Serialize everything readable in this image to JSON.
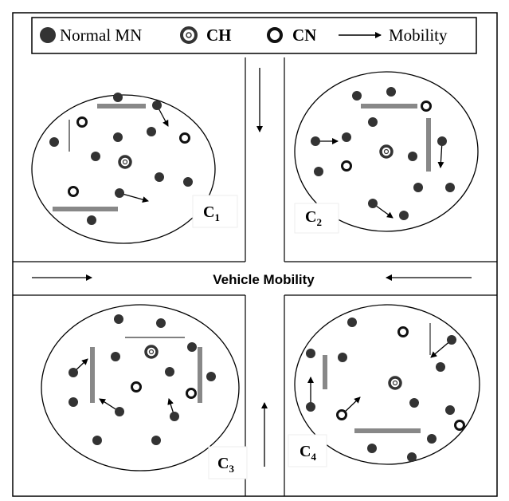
{
  "legend": {
    "normal": "Normal MN",
    "ch": "CH",
    "cn": "CN",
    "mobility": "Mobility"
  },
  "road_label": "Vehicle Mobility",
  "clusters": [
    {
      "name": "C",
      "sub": "1"
    },
    {
      "name": "C",
      "sub": "2"
    },
    {
      "name": "C",
      "sub": "3"
    },
    {
      "name": "C",
      "sub": "4"
    }
  ]
}
